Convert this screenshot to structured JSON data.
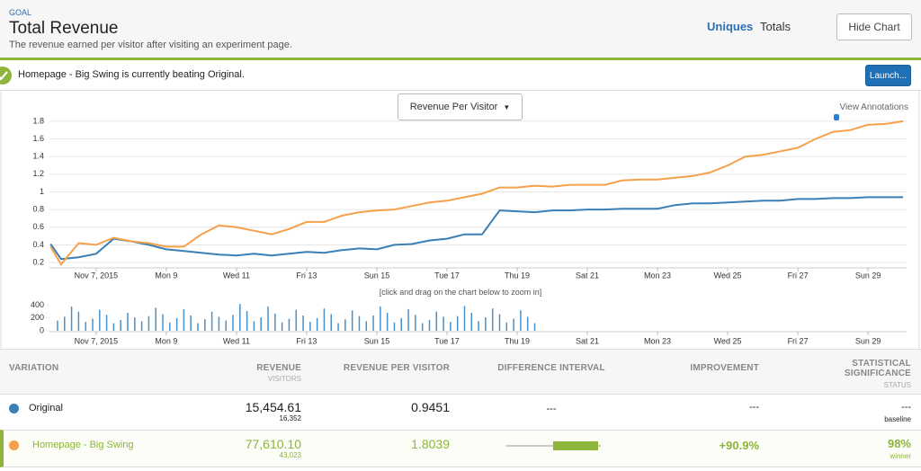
{
  "header": {
    "label": "GOAL",
    "title": "Total Revenue",
    "subtitle": "The revenue earned per visitor after visiting an experiment page.",
    "tabs": [
      "Uniques",
      "Totals"
    ],
    "button": "Hide Chart"
  },
  "alert": {
    "message": "Homepage - Big Swing is currently beating Original.",
    "button": "Launch..."
  },
  "controls": {
    "metric": "Revenue Per Visitor",
    "annotations": "View Annotations",
    "zoom_hint": "[click and drag on the chart below to zoom in]"
  },
  "chart_data": [
    {
      "type": "line",
      "x": [
        5.7,
        6,
        6.5,
        7,
        7.5,
        8,
        8.5,
        9,
        9.5,
        10,
        10.5,
        11,
        11.5,
        12,
        12.5,
        13,
        13.5,
        14,
        14.5,
        15,
        15.5,
        16,
        16.5,
        17,
        17.5,
        18,
        18.5,
        19,
        19.5,
        20,
        20.5,
        21,
        21.5,
        22,
        22.5,
        23,
        23.5,
        24,
        24.5,
        25,
        25.5,
        26,
        26.5,
        27,
        27.5,
        28,
        28.5,
        29,
        29.5,
        30
      ],
      "series": [
        {
          "name": "Original",
          "color": "#3a7fb5",
          "values": [
            0.41,
            0.24,
            0.26,
            0.3,
            0.47,
            0.44,
            0.4,
            0.35,
            0.33,
            0.31,
            0.29,
            0.28,
            0.3,
            0.28,
            0.3,
            0.32,
            0.31,
            0.34,
            0.36,
            0.35,
            0.4,
            0.41,
            0.45,
            0.47,
            0.52,
            0.52,
            0.79,
            0.78,
            0.77,
            0.79,
            0.79,
            0.8,
            0.8,
            0.81,
            0.81,
            0.81,
            0.85,
            0.87,
            0.87,
            0.88,
            0.89,
            0.9,
            0.9,
            0.92,
            0.92,
            0.93,
            0.93,
            0.94,
            0.94,
            0.94
          ]
        },
        {
          "name": "Homepage - Big Swing",
          "color": "#f5a04a",
          "values": [
            0.38,
            0.18,
            0.42,
            0.4,
            0.48,
            0.44,
            0.42,
            0.38,
            0.38,
            0.52,
            0.62,
            0.6,
            0.56,
            0.52,
            0.58,
            0.66,
            0.66,
            0.73,
            0.77,
            0.79,
            0.8,
            0.84,
            0.88,
            0.9,
            0.94,
            0.98,
            1.05,
            1.05,
            1.07,
            1.06,
            1.08,
            1.08,
            1.08,
            1.13,
            1.14,
            1.14,
            1.16,
            1.18,
            1.22,
            1.3,
            1.4,
            1.42,
            1.46,
            1.5,
            1.6,
            1.68,
            1.7,
            1.76,
            1.77,
            1.8
          ]
        }
      ],
      "xlim": [
        5.67,
        30.1
      ],
      "xticks": [
        {
          "value": 7,
          "label": "Nov 7, 2015"
        },
        {
          "value": 9,
          "label": "Mon 9"
        },
        {
          "value": 11,
          "label": "Wed 11"
        },
        {
          "value": 13,
          "label": "Fri 13"
        },
        {
          "value": 15,
          "label": "Sun 15"
        },
        {
          "value": 17,
          "label": "Tue 17"
        },
        {
          "value": 19,
          "label": "Thu 19"
        },
        {
          "value": 21,
          "label": "Sat 21"
        },
        {
          "value": 23,
          "label": "Mon 23"
        },
        {
          "value": 25,
          "label": "Wed 25"
        },
        {
          "value": 27,
          "label": "Fri 27"
        },
        {
          "value": 29,
          "label": "Sun 29"
        }
      ],
      "ylim": [
        0.15,
        1.85
      ],
      "yticks": [
        0.2,
        0.4,
        0.6,
        0.8,
        1,
        1.2,
        1.4,
        1.6,
        1.8
      ],
      "grid": true
    },
    {
      "type": "bar",
      "color": "#4a90c8",
      "x": [
        5.9,
        6.1,
        6.3,
        6.5,
        6.7,
        6.9,
        7.1,
        7.3,
        7.5,
        7.7,
        7.9,
        8.1,
        8.3,
        8.5,
        8.7,
        8.9,
        9.1,
        9.3,
        9.5,
        9.7,
        9.9,
        10.1,
        10.3,
        10.5,
        10.7,
        10.9,
        11.1,
        11.3,
        11.5,
        11.7,
        11.9,
        12.1,
        12.3,
        12.5,
        12.7,
        12.9,
        13.1,
        13.3,
        13.5,
        13.7,
        13.9,
        14.1,
        14.3,
        14.5,
        14.7,
        14.9,
        15.1,
        15.3,
        15.5,
        15.7,
        15.9,
        16.1,
        16.3,
        16.5,
        16.7,
        16.9,
        17.1,
        17.3,
        17.5,
        17.7,
        17.9,
        18.1,
        18.3,
        18.5,
        18.7,
        18.9,
        19.1,
        19.3,
        19.5
      ],
      "values": [
        160,
        220,
        380,
        300,
        140,
        190,
        330,
        250,
        120,
        170,
        280,
        210,
        150,
        230,
        360,
        260,
        130,
        200,
        340,
        240,
        120,
        180,
        300,
        220,
        160,
        250,
        420,
        310,
        150,
        210,
        380,
        270,
        130,
        190,
        330,
        240,
        140,
        200,
        350,
        260,
        120,
        180,
        320,
        230,
        150,
        240,
        380,
        280,
        130,
        200,
        340,
        250,
        120,
        170,
        300,
        220,
        140,
        230,
        390,
        280,
        150,
        210,
        350,
        260,
        130,
        190,
        320,
        220,
        120
      ],
      "xlim": [
        5.67,
        30.1
      ],
      "xticks": [
        {
          "value": 7,
          "label": "Nov 7, 2015"
        },
        {
          "value": 9,
          "label": "Mon 9"
        },
        {
          "value": 11,
          "label": "Wed 11"
        },
        {
          "value": 13,
          "label": "Fri 13"
        },
        {
          "value": 15,
          "label": "Sun 15"
        },
        {
          "value": 17,
          "label": "Tue 17"
        },
        {
          "value": 19,
          "label": "Thu 19"
        },
        {
          "value": 21,
          "label": "Sat 21"
        },
        {
          "value": 23,
          "label": "Mon 23"
        },
        {
          "value": 25,
          "label": "Wed 25"
        },
        {
          "value": 27,
          "label": "Fri 27"
        },
        {
          "value": 29,
          "label": "Sun 29"
        }
      ],
      "ylim": [
        0,
        480
      ],
      "yticks": [
        0,
        200,
        400
      ]
    }
  ],
  "table": {
    "columns": [
      {
        "title": "VARIATION"
      },
      {
        "title": "REVENUE",
        "sub": "VISITORS"
      },
      {
        "title": "REVENUE PER VISITOR"
      },
      {
        "title": "DIFFERENCE INTERVAL"
      },
      {
        "title": "IMPROVEMENT"
      },
      {
        "title": "STATISTICAL SIGNIFICANCE",
        "sub": "STATUS"
      }
    ],
    "rows": [
      {
        "name": "Original",
        "color": "#3a7fb5",
        "revenue": "15,454.61",
        "visitors": "16,352",
        "rpv": "0.9451",
        "difference": "---",
        "improvement": "---",
        "significance": "---",
        "status": "baseline"
      },
      {
        "name": "Homepage - Big Swing",
        "color": "#f5a04a",
        "revenue": "77,610.10",
        "visitors": "43,023",
        "rpv": "1.8039",
        "improvement": "+90.9%",
        "significance": "98%",
        "status": "winner"
      }
    ]
  }
}
